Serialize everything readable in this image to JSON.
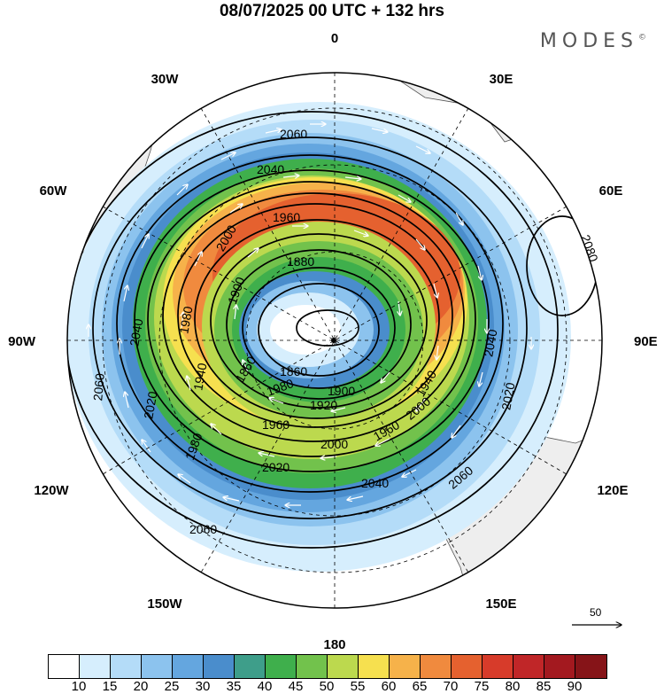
{
  "title": "08/07/2025  00 UTC  + 132 hrs",
  "brand": "MODES",
  "brand_mark": "©",
  "longitudes": {
    "top": "0",
    "bottom": "180",
    "left": "90W",
    "right": "90E",
    "n30w": "30W",
    "n30e": "30E",
    "n60w": "60W",
    "n60e": "60E",
    "n120w": "120W",
    "n120e": "120E",
    "n150w": "150W",
    "n150e": "150E"
  },
  "contour_labels": [
    "2060",
    "2040",
    "1960",
    "2000",
    "1880",
    "1900",
    "1860",
    "1980",
    "2040",
    "2060",
    "2020",
    "1940",
    "1980",
    "1920",
    "1960",
    "2000",
    "2020",
    "2040",
    "2060",
    "2060",
    "2040",
    "2020",
    "2000",
    "1960",
    "1980",
    "1940",
    "1900",
    "1860",
    "2080"
  ],
  "reference_vector": "50",
  "colorbar": {
    "ticks": [
      "10",
      "15",
      "20",
      "25",
      "30",
      "35",
      "40",
      "45",
      "50",
      "55",
      "60",
      "65",
      "70",
      "75",
      "80",
      "85",
      "90"
    ],
    "colors": [
      "#ffffff",
      "#d6eefd",
      "#b4dcf8",
      "#8cc3ee",
      "#64a6df",
      "#4a8dcc",
      "#3e9e8a",
      "#3faf4c",
      "#72c24c",
      "#bcd94e",
      "#f6e04f",
      "#f6b24a",
      "#f08a3e",
      "#e5612f",
      "#d73b2a",
      "#c02628",
      "#a3191f",
      "#861418"
    ]
  },
  "colors": {
    "land": "#eeeeee",
    "coast": "#555555"
  }
}
